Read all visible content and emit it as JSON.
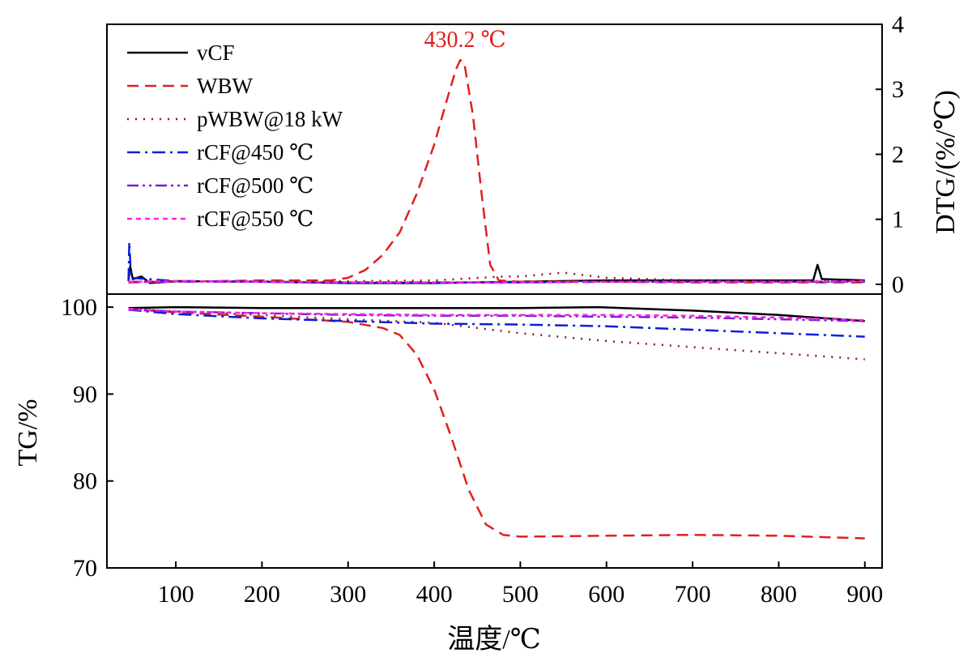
{
  "chart_data": {
    "type": "line",
    "x_axis": {
      "label": "温度/℃",
      "range": [
        20,
        920
      ],
      "ticks": [
        "100",
        "200",
        "300",
        "400",
        "500",
        "600",
        "700",
        "800",
        "900"
      ]
    },
    "dtg_axis": {
      "label": "DTG/(%/℃)",
      "range": [
        -0.15,
        4
      ],
      "ticks": [
        "0",
        "1",
        "2",
        "3",
        "4"
      ]
    },
    "tg_axis": {
      "label": "TG/%",
      "range": [
        70,
        101.5
      ],
      "ticks": [
        "70",
        "80",
        "90",
        "100"
      ]
    },
    "annotation": {
      "text": "430.2 ℃",
      "color": "#e0201b",
      "x": 430.2
    },
    "legend_position": "top-left",
    "series": [
      {
        "name": "vCF",
        "color": "#000000",
        "dash": "solid",
        "dtg": [
          [
            45,
            0.05
          ],
          [
            47,
            0.28
          ],
          [
            50,
            0.08
          ],
          [
            60,
            0.12
          ],
          [
            70,
            0.02
          ],
          [
            100,
            0.05
          ],
          [
            200,
            0.04
          ],
          [
            300,
            0.02
          ],
          [
            400,
            0.02
          ],
          [
            500,
            0.04
          ],
          [
            600,
            0.06
          ],
          [
            700,
            0.06
          ],
          [
            800,
            0.06
          ],
          [
            840,
            0.06
          ],
          [
            845,
            0.3
          ],
          [
            850,
            0.08
          ],
          [
            900,
            0.06
          ]
        ],
        "tg": [
          [
            45,
            99.9
          ],
          [
            100,
            100.0
          ],
          [
            200,
            99.9
          ],
          [
            300,
            99.9
          ],
          [
            400,
            99.9
          ],
          [
            500,
            99.9
          ],
          [
            590,
            100.0
          ],
          [
            700,
            99.6
          ],
          [
            800,
            99.1
          ],
          [
            900,
            98.4
          ]
        ]
      },
      {
        "name": "WBW",
        "color": "#e0201b",
        "dash": "dashed",
        "dtg": [
          [
            45,
            0.03
          ],
          [
            100,
            0.04
          ],
          [
            200,
            0.06
          ],
          [
            280,
            0.06
          ],
          [
            300,
            0.1
          ],
          [
            320,
            0.22
          ],
          [
            340,
            0.45
          ],
          [
            360,
            0.8
          ],
          [
            380,
            1.4
          ],
          [
            400,
            2.15
          ],
          [
            415,
            2.85
          ],
          [
            425,
            3.3
          ],
          [
            430.2,
            3.45
          ],
          [
            435,
            3.4
          ],
          [
            445,
            2.6
          ],
          [
            455,
            1.4
          ],
          [
            465,
            0.3
          ],
          [
            475,
            0.06
          ],
          [
            500,
            0.04
          ],
          [
            600,
            0.04
          ],
          [
            700,
            0.03
          ],
          [
            800,
            0.03
          ],
          [
            900,
            0.03
          ]
        ],
        "tg": [
          [
            45,
            99.8
          ],
          [
            100,
            99.4
          ],
          [
            200,
            98.9
          ],
          [
            300,
            98.3
          ],
          [
            340,
            97.6
          ],
          [
            360,
            96.8
          ],
          [
            380,
            94.5
          ],
          [
            400,
            90.5
          ],
          [
            420,
            85.0
          ],
          [
            440,
            79.0
          ],
          [
            460,
            75.0
          ],
          [
            480,
            73.8
          ],
          [
            500,
            73.6
          ],
          [
            600,
            73.7
          ],
          [
            700,
            73.8
          ],
          [
            800,
            73.7
          ],
          [
            900,
            73.4
          ]
        ]
      },
      {
        "name": "pWBW@18 kW",
        "color": "#8b1a1a",
        "dash": "dotted",
        "dtg": [
          [
            45,
            0.03
          ],
          [
            100,
            0.05
          ],
          [
            200,
            0.05
          ],
          [
            300,
            0.05
          ],
          [
            400,
            0.06
          ],
          [
            480,
            0.12
          ],
          [
            500,
            0.12
          ],
          [
            550,
            0.18
          ],
          [
            600,
            0.1
          ],
          [
            700,
            0.06
          ],
          [
            800,
            0.05
          ],
          [
            900,
            0.05
          ]
        ],
        "tg": [
          [
            45,
            99.8
          ],
          [
            100,
            99.5
          ],
          [
            200,
            99.1
          ],
          [
            300,
            98.6
          ],
          [
            400,
            98.2
          ],
          [
            500,
            97.0
          ],
          [
            600,
            96.1
          ],
          [
            700,
            95.4
          ],
          [
            800,
            94.7
          ],
          [
            900,
            94.0
          ]
        ]
      },
      {
        "name": "rCF@450 ℃",
        "color": "#0a1fe0",
        "dash": "dashdot",
        "dtg": [
          [
            45,
            0.05
          ],
          [
            46,
            0.65
          ],
          [
            48,
            0.1
          ],
          [
            100,
            0.05
          ],
          [
            200,
            0.04
          ],
          [
            300,
            0.03
          ],
          [
            400,
            0.03
          ],
          [
            500,
            0.03
          ],
          [
            600,
            0.04
          ],
          [
            700,
            0.04
          ],
          [
            800,
            0.04
          ],
          [
            900,
            0.04
          ]
        ],
        "tg": [
          [
            45,
            99.7
          ],
          [
            100,
            99.2
          ],
          [
            200,
            98.7
          ],
          [
            300,
            98.4
          ],
          [
            400,
            98.1
          ],
          [
            500,
            98.0
          ],
          [
            600,
            97.8
          ],
          [
            700,
            97.4
          ],
          [
            800,
            97.0
          ],
          [
            900,
            96.6
          ]
        ]
      },
      {
        "name": "rCF@500 ℃",
        "color": "#7a1fd6",
        "dash": "dashdotdot",
        "dtg": [
          [
            45,
            0.04
          ],
          [
            100,
            0.04
          ],
          [
            200,
            0.04
          ],
          [
            300,
            0.03
          ],
          [
            400,
            0.03
          ],
          [
            500,
            0.03
          ],
          [
            600,
            0.04
          ],
          [
            700,
            0.04
          ],
          [
            800,
            0.04
          ],
          [
            900,
            0.04
          ]
        ],
        "tg": [
          [
            45,
            99.7
          ],
          [
            100,
            99.5
          ],
          [
            200,
            99.3
          ],
          [
            300,
            99.1
          ],
          [
            400,
            99.0
          ],
          [
            500,
            99.0
          ],
          [
            600,
            98.9
          ],
          [
            700,
            98.8
          ],
          [
            800,
            98.6
          ],
          [
            900,
            98.4
          ]
        ]
      },
      {
        "name": "rCF@550 ℃",
        "color": "#ff1fe8",
        "dash": "shortdash",
        "dtg": [
          [
            45,
            0.04
          ],
          [
            100,
            0.05
          ],
          [
            200,
            0.04
          ],
          [
            300,
            0.03
          ],
          [
            400,
            0.03
          ],
          [
            500,
            0.03
          ],
          [
            600,
            0.04
          ],
          [
            700,
            0.04
          ],
          [
            800,
            0.04
          ],
          [
            900,
            0.05
          ]
        ],
        "tg": [
          [
            45,
            99.8
          ],
          [
            100,
            99.5
          ],
          [
            200,
            99.3
          ],
          [
            300,
            99.2
          ],
          [
            400,
            99.1
          ],
          [
            500,
            99.1
          ],
          [
            600,
            99.1
          ],
          [
            700,
            99.0
          ],
          [
            800,
            98.8
          ],
          [
            900,
            98.5
          ]
        ]
      }
    ]
  }
}
